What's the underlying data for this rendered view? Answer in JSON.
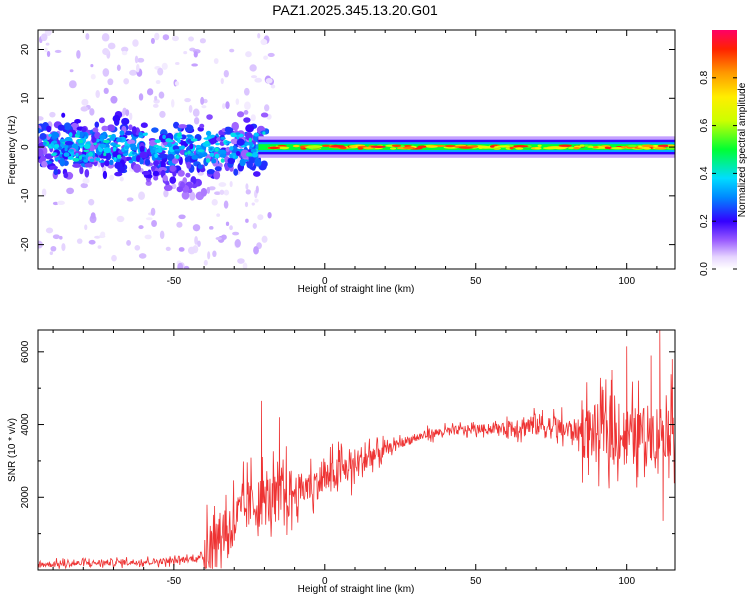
{
  "title": "PAZ1.2025.345.13.20.G01",
  "chart_data": [
    {
      "type": "heatmap",
      "xlabel": "Height of straight line (km)",
      "ylabel": "Frequency (Hz)",
      "xlim": [
        -95,
        116
      ],
      "ylim": [
        -25,
        24
      ],
      "xticks": [
        -50,
        0,
        50,
        100
      ],
      "yticks": [
        -20,
        -10,
        0,
        10,
        20
      ],
      "colorbar": {
        "label": "Normalized spectral amplitude",
        "range": [
          0,
          1
        ],
        "ticks": [
          "0.0",
          "0.2",
          "0.4",
          "0.6",
          "0.8"
        ],
        "tick_values": [
          0,
          0.2,
          0.4,
          0.6,
          0.8
        ]
      },
      "description_series": [
        {
          "name": "noisy region",
          "x_range": [
            -95,
            -20
          ],
          "freq_center": 0,
          "freq_spread": 12
        },
        {
          "name": "signal line",
          "x_range": [
            -20,
            116
          ],
          "freq_center": 0,
          "freq_spread": 1
        }
      ]
    },
    {
      "type": "line",
      "xlabel": "Height of straight line (km)",
      "ylabel": "SNR (10 * v/v)",
      "xlim": [
        -95,
        116
      ],
      "ylim": [
        0,
        6600
      ],
      "xticks": [
        -50,
        0,
        50,
        100
      ],
      "yticks": [
        2000,
        4000,
        6000
      ],
      "color": "#ee3333",
      "envelope": [
        {
          "x": -95,
          "y": 150
        },
        {
          "x": -50,
          "y": 250
        },
        {
          "x": -40,
          "y": 350
        },
        {
          "x": -35,
          "y": 900
        },
        {
          "x": -25,
          "y": 1800
        },
        {
          "x": -15,
          "y": 2000
        },
        {
          "x": -5,
          "y": 2300
        },
        {
          "x": 5,
          "y": 2700
        },
        {
          "x": 15,
          "y": 3100
        },
        {
          "x": 25,
          "y": 3500
        },
        {
          "x": 35,
          "y": 3750
        },
        {
          "x": 45,
          "y": 3850
        },
        {
          "x": 58,
          "y": 3900
        },
        {
          "x": 70,
          "y": 4000
        },
        {
          "x": 80,
          "y": 3850
        },
        {
          "x": 90,
          "y": 3800
        },
        {
          "x": 100,
          "y": 3700
        },
        {
          "x": 110,
          "y": 3800
        },
        {
          "x": 116,
          "y": 3900
        }
      ],
      "spikes": [
        {
          "x": -21,
          "y": 4650
        },
        {
          "x": -15,
          "y": 4200
        },
        {
          "x": 72,
          "y": 4400
        },
        {
          "x": 95,
          "y": 5500
        },
        {
          "x": 100,
          "y": 6150
        },
        {
          "x": 108,
          "y": 5900
        },
        {
          "x": 111,
          "y": 6600
        },
        {
          "x": 115,
          "y": 5800
        },
        {
          "x": 112,
          "y": 1350
        }
      ]
    }
  ]
}
